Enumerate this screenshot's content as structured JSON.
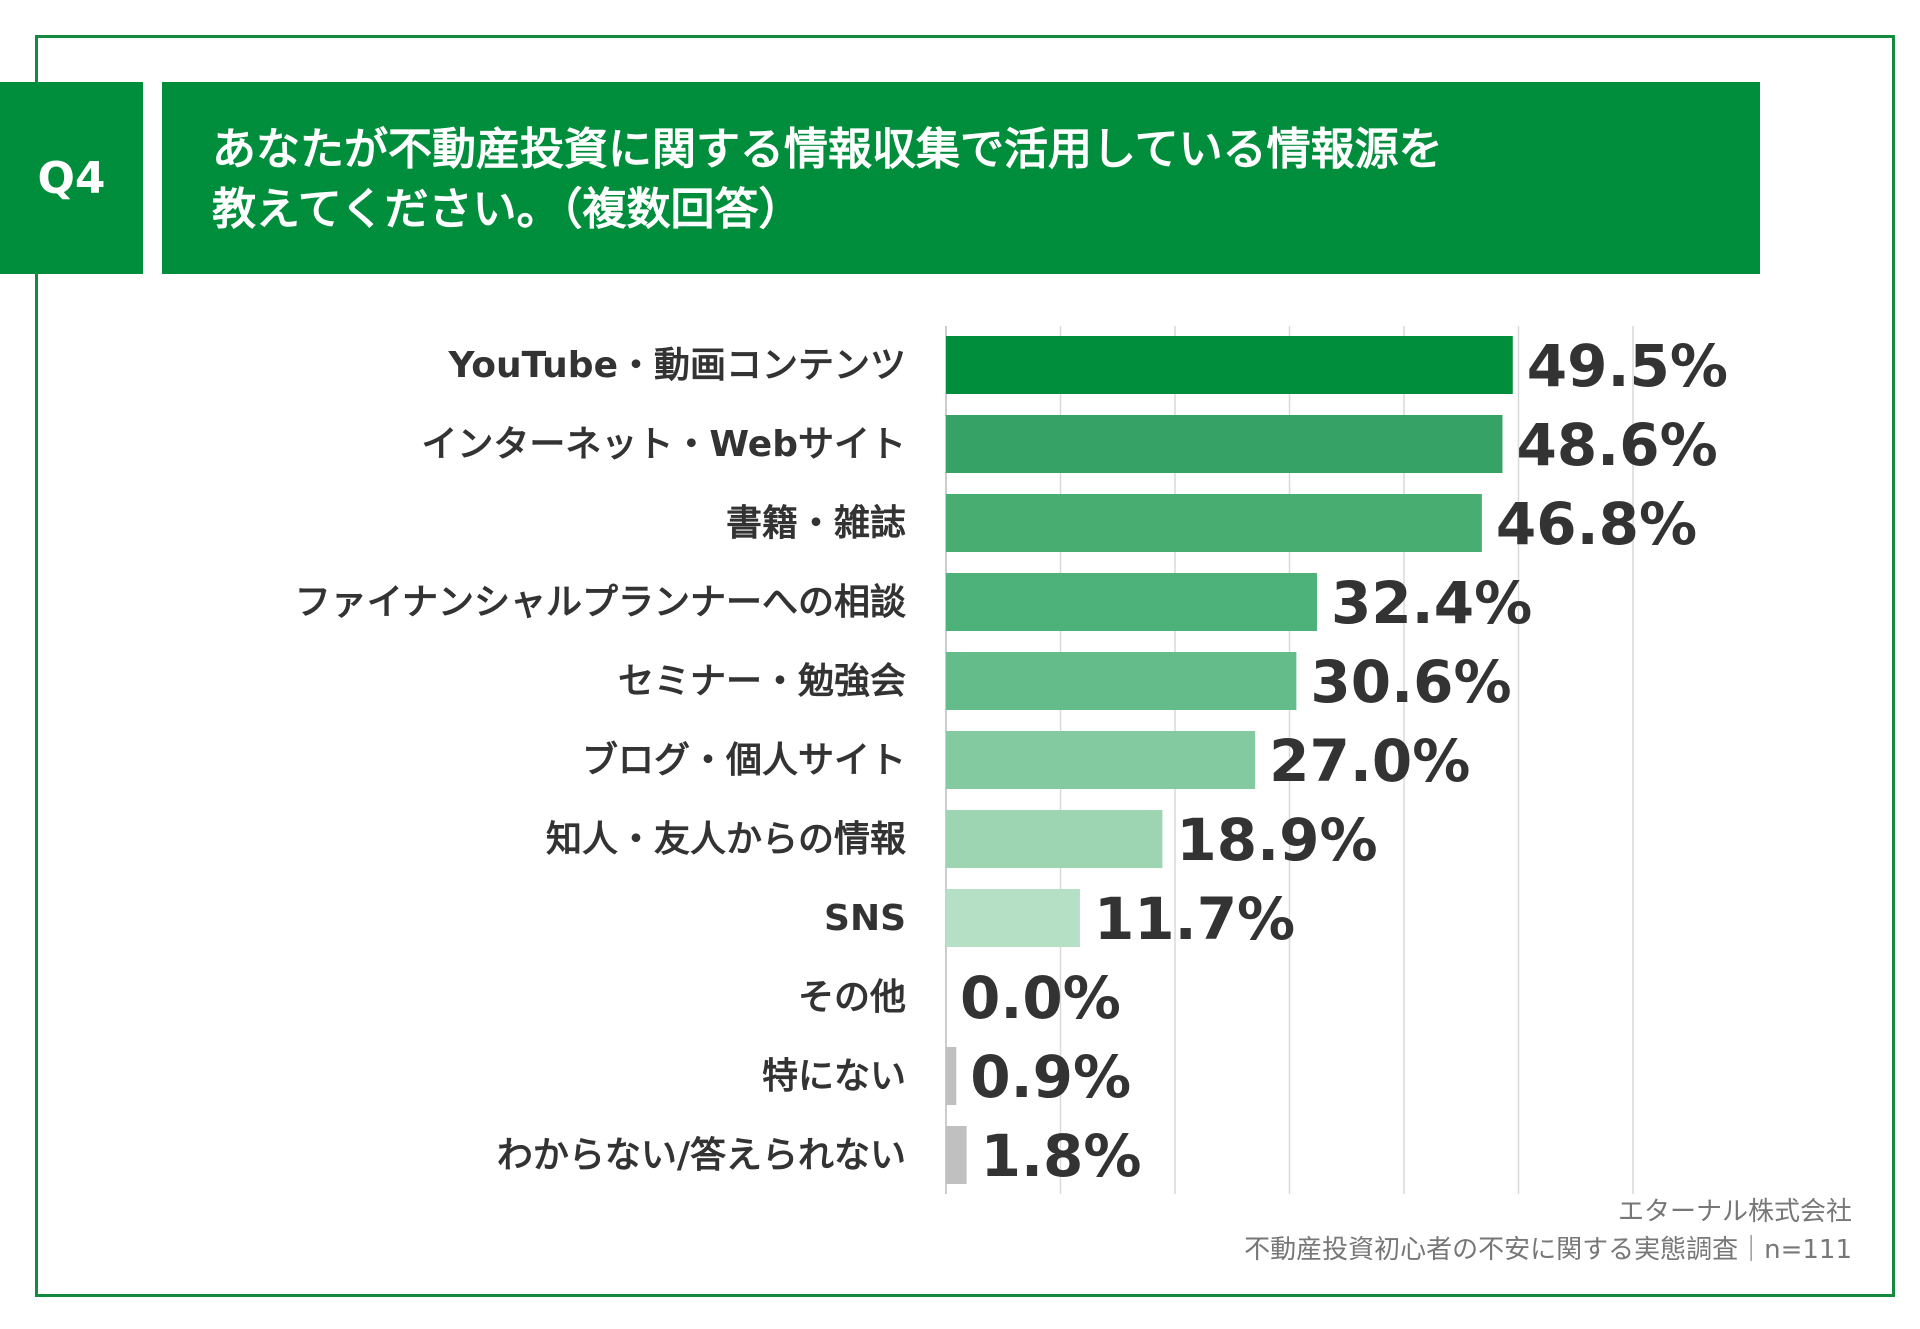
{
  "header": {
    "badge": "Q4",
    "title_line1": "あなたが不動産投資に関する情報収集で活用している情報源を",
    "title_line2": "教えてください。（複数回答）"
  },
  "source": {
    "line1": "エターナル株式会社",
    "line2": "不動産投資初心者の不安に関する実態調査｜n=111"
  },
  "colors": {
    "frame": "#138a3d",
    "header_bg": "#008d3c",
    "bars": [
      "#008d3c",
      "#36a265",
      "#47ad71",
      "#4cb27a",
      "#65bc8b",
      "#84caa0",
      "#9dd5b3",
      "#b6e0c6",
      "#c0c0c0",
      "#c0c0c0",
      "#c0c0c0"
    ],
    "grid": "#d9d9d9"
  },
  "chart_data": {
    "type": "bar",
    "orientation": "horizontal",
    "categories": [
      "YouTube・動画コンテンツ",
      "インターネット・Webサイト",
      "書籍・雑誌",
      "ファイナンシャルプランナーへの相談",
      "セミナー・勉強会",
      "ブログ・個人サイト",
      "知人・友人からの情報",
      "SNS",
      "その他",
      "特にない",
      "わからない/答えられない"
    ],
    "values": [
      49.5,
      48.6,
      46.8,
      32.4,
      30.6,
      27.0,
      18.9,
      11.7,
      0.0,
      0.9,
      1.8
    ],
    "value_labels": [
      "49.5%",
      "48.6%",
      "46.8%",
      "32.4%",
      "30.6%",
      "27.0%",
      "18.9%",
      "11.7%",
      "0.0%",
      "0.9%",
      "1.8%"
    ],
    "xlim": [
      0,
      60
    ],
    "grid": true,
    "title": "",
    "xlabel": "",
    "ylabel": ""
  }
}
